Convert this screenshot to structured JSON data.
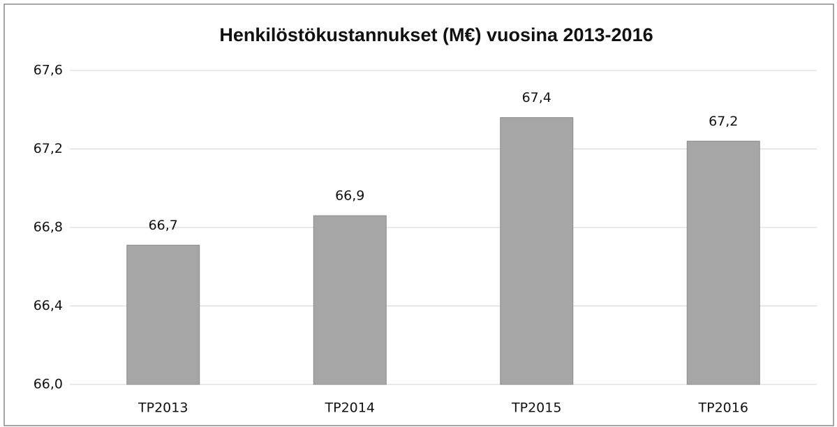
{
  "chart_data": {
    "type": "bar",
    "title": "Henkilöstökustannukset (M€) vuosina 2013-2016",
    "categories": [
      "TP2013",
      "TP2014",
      "TP2015",
      "TP2016"
    ],
    "values": [
      66.71,
      66.86,
      67.36,
      67.24
    ],
    "value_labels": [
      "66,7",
      "66,9",
      "67,4",
      "67,2"
    ],
    "color": "#a6a6a6",
    "ylim": [
      66.0,
      67.6
    ],
    "yticks": [
      {
        "value": 66.0,
        "label": "66,0"
      },
      {
        "value": 66.4,
        "label": "66,4"
      },
      {
        "value": 66.8,
        "label": "66,8"
      },
      {
        "value": 67.2,
        "label": "67,2"
      },
      {
        "value": 67.6,
        "label": "67,6"
      }
    ],
    "grid": true
  }
}
